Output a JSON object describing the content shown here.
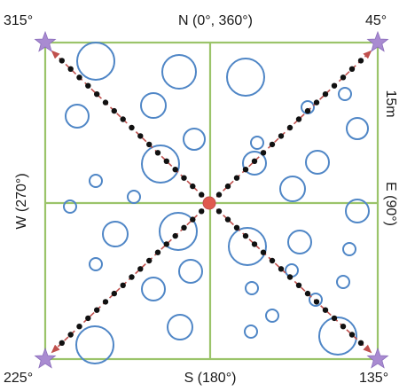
{
  "labels": {
    "north": "N (0°, 360°)",
    "south": "S (180°)",
    "east": "E (90°)",
    "west": "W (270°)",
    "nw": "315°",
    "ne": "45°",
    "se": "135°",
    "sw": "225°",
    "scale": "15m"
  },
  "colors": {
    "grid": "#9bc46a",
    "circle_stroke": "#4f86c6",
    "star": "#a98bd1",
    "line": "#c0504d",
    "dot": "#111111",
    "center": "#e05a4e",
    "text": "#1a1a1a"
  },
  "icons": {
    "corner": "star-icon",
    "center": "center-point-icon"
  }
}
